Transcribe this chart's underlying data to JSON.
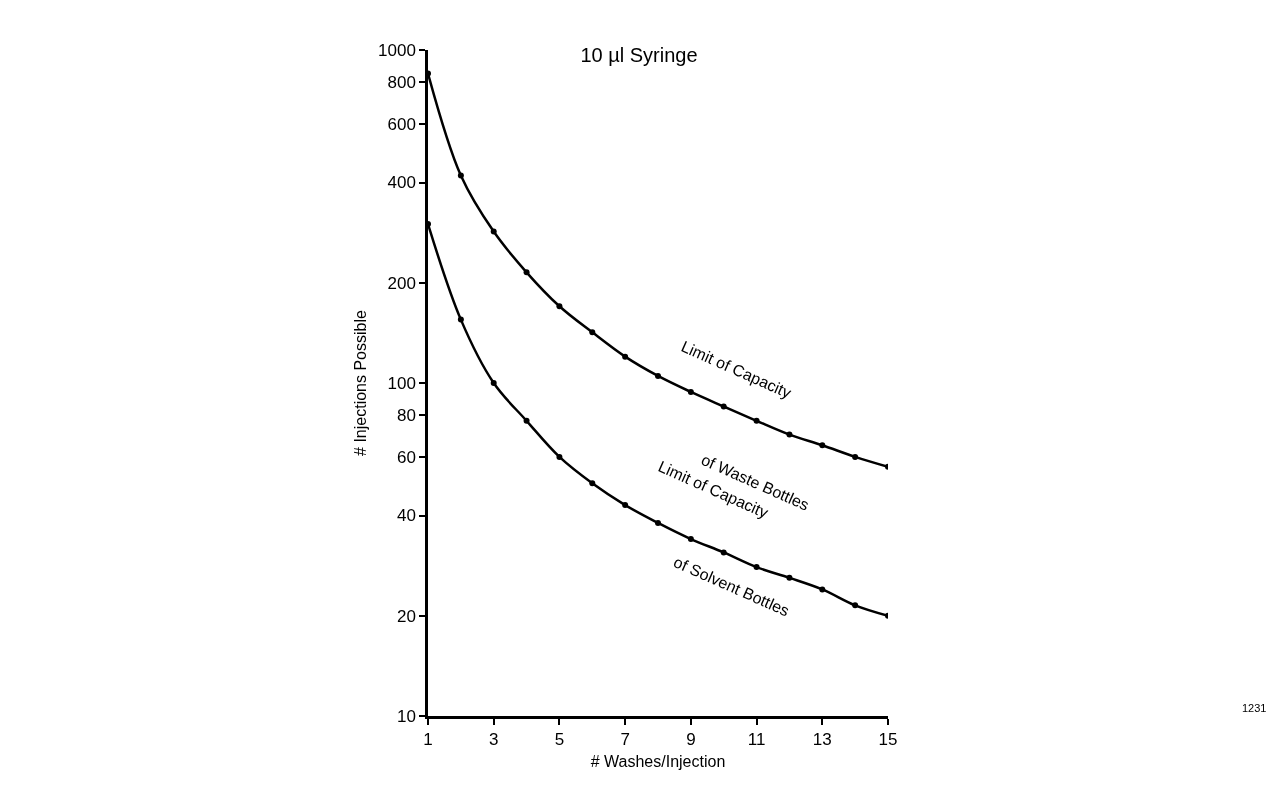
{
  "chart_data": {
    "type": "line",
    "title": "10 µl Syringe",
    "xlabel": "# Washes/Injection",
    "ylabel": "# Injections Possible",
    "x": [
      1,
      2,
      3,
      4,
      5,
      6,
      7,
      8,
      9,
      10,
      11,
      12,
      13,
      14,
      15
    ],
    "series": [
      {
        "color": "#000000",
        "values": [
          850,
          420,
          285,
          215,
          170,
          142,
          120,
          105,
          94,
          85,
          77,
          70,
          65,
          60,
          56
        ]
      },
      {
        "color": "#000000",
        "values": [
          300,
          155,
          100,
          77,
          60,
          50,
          43,
          38,
          34,
          31,
          28,
          26,
          24,
          21.5,
          20
        ]
      }
    ],
    "log": "y",
    "xlim": [
      1,
      15
    ],
    "ylim": [
      10,
      1000
    ],
    "xticks": [
      1,
      3,
      5,
      7,
      9,
      11,
      13,
      15
    ],
    "yticks": [
      10,
      20,
      40,
      60,
      80,
      100,
      200,
      400,
      600,
      800,
      1000
    ],
    "marker": "circle",
    "line_style": "solid",
    "annotations": [
      "Limit of Capacity",
      "of Waste Bottles",
      "Limit of Capacity",
      "of Solvent Bottles",
      "1231"
    ]
  }
}
